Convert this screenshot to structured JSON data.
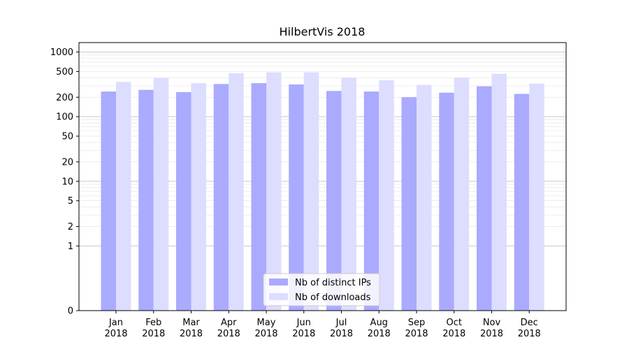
{
  "chart_data": {
    "type": "bar",
    "title": "HilbertVis 2018",
    "xlabel": "",
    "ylabel": "",
    "categories": [
      "Jan\n2018",
      "Feb\n2018",
      "Mar\n2018",
      "Apr\n2018",
      "May\n2018",
      "Jun\n2018",
      "Jul\n2018",
      "Aug\n2018",
      "Sep\n2018",
      "Oct\n2018",
      "Nov\n2018",
      "Dec\n2018"
    ],
    "series": [
      {
        "name": "Nb of distinct IPs",
        "color": "#aaaaff",
        "values": [
          245,
          260,
          240,
          320,
          330,
          315,
          250,
          245,
          200,
          235,
          295,
          225
        ]
      },
      {
        "name": "Nb of downloads",
        "color": "#ddddff",
        "values": [
          345,
          395,
          330,
          470,
          485,
          485,
          400,
          365,
          310,
          400,
          460,
          325
        ]
      }
    ],
    "y_scale": "symlog",
    "ylim": [
      0,
      1400
    ],
    "yticks": [
      0,
      1,
      2,
      5,
      10,
      20,
      50,
      100,
      200,
      500,
      1000
    ],
    "grid": true,
    "legend_position": "bottom-center"
  }
}
